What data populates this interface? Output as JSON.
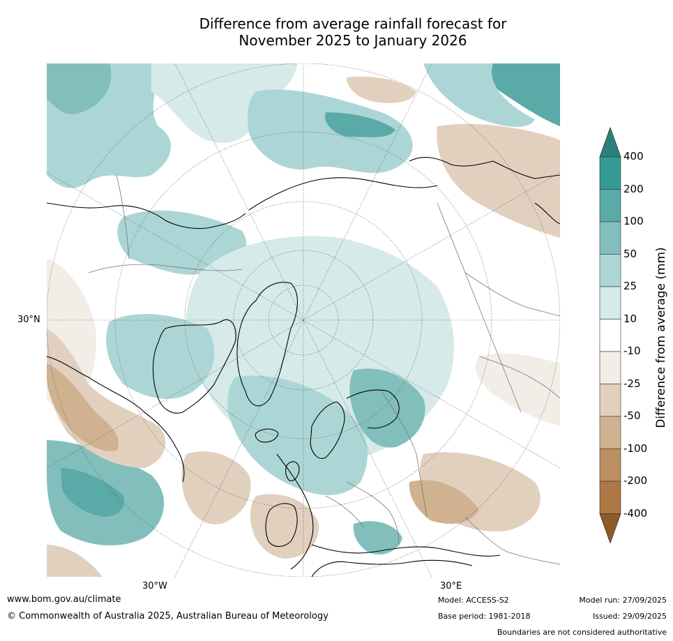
{
  "title": {
    "line1": "Difference from average rainfall forecast for",
    "line2": "November 2025 to January 2026"
  },
  "map": {
    "projection": "north-polar-stereographic",
    "lat_labels": [
      "30°N"
    ],
    "lon_labels": [
      "30°W",
      "30°E"
    ]
  },
  "colorbar": {
    "title": "Difference from average (mm)",
    "tick_labels": [
      "400",
      "200",
      "100",
      "50",
      "25",
      "10",
      "-10",
      "-25",
      "-50",
      "-100",
      "-200",
      "-400"
    ],
    "colors": [
      "#2a807c",
      "#349a96",
      "#5aaaa7",
      "#82bfbc",
      "#acd6d5",
      "#d5eae9",
      "#ffffff",
      "#f2ede7",
      "#e2d0bf",
      "#d0b291",
      "#bb8f62",
      "#ad7845",
      "#8e5a27"
    ]
  },
  "footer": {
    "url": "www.bom.gov.au/climate",
    "copyright": "© Commonwealth of Australia 2025, Australian Bureau of Meteorology",
    "model": "Model: ACCESS-S2",
    "base_period": "Base period: 1981-2018",
    "model_run": "Model run: 27/09/2025",
    "issued": "Issued: 29/09/2025",
    "disclaimer": "Boundaries are not considered authoritative"
  }
}
